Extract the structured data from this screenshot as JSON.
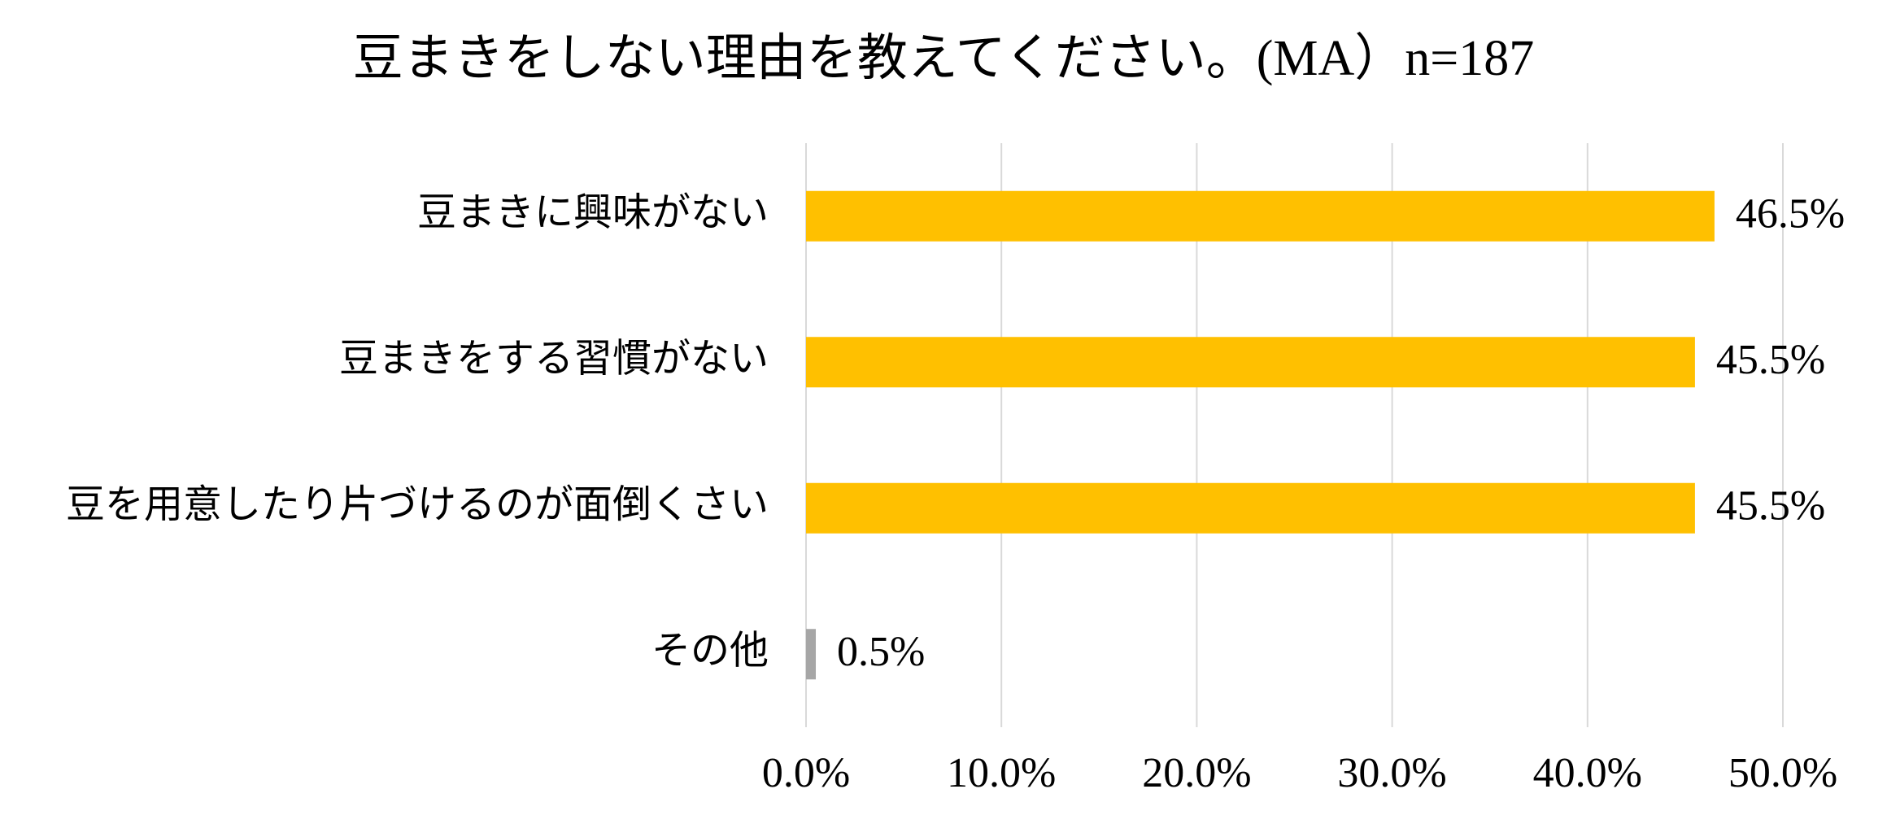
{
  "chart_data": {
    "type": "hbar",
    "title": "豆まきをしない理由を教えてください。(MA）n=187",
    "categories": [
      "豆まきに興味がない",
      "豆まきをする習慣がない",
      "豆を用意したり片づけるのが面倒くさい",
      "その他"
    ],
    "values": [
      46.5,
      45.5,
      45.5,
      0.5
    ],
    "value_labels": [
      "46.5%",
      "45.5%",
      "45.5%",
      "0.5%"
    ],
    "colors": [
      "#ffc000",
      "#ffc000",
      "#ffc000",
      "#a6a6a6"
    ],
    "xlim": [
      0,
      50
    ],
    "xticks": [
      {
        "value": 0,
        "label": "0.0%"
      },
      {
        "value": 10,
        "label": "10.0%"
      },
      {
        "value": 20,
        "label": "20.0%"
      },
      {
        "value": 30,
        "label": "30.0%"
      },
      {
        "value": 40,
        "label": "40.0%"
      },
      {
        "value": 50,
        "label": "50.0%"
      }
    ],
    "grid": true
  }
}
